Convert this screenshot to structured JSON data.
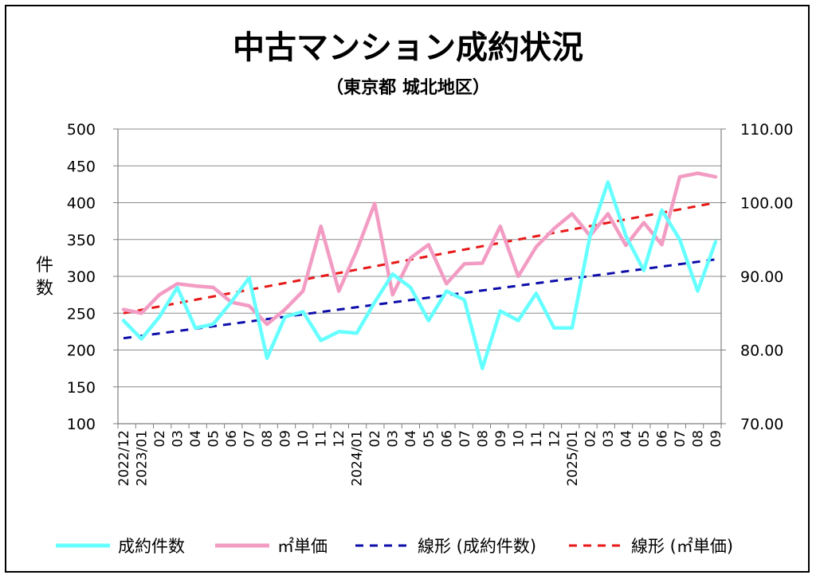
{
  "chart_data": {
    "type": "line",
    "title": "中古マンション成約状況",
    "subtitle": "（東京都 城北地区）",
    "ylabel": "件\n数",
    "ylim_left": [
      100,
      500
    ],
    "ylim_right": [
      70,
      110
    ],
    "left_ticks": [
      "100",
      "150",
      "200",
      "250",
      "300",
      "350",
      "400",
      "450",
      "500"
    ],
    "right_ticks": [
      "70.00",
      "80.00",
      "90.00",
      "100.00",
      "110.00"
    ],
    "categories": [
      "2022/12",
      "2023/01",
      "02",
      "03",
      "04",
      "05",
      "06",
      "07",
      "08",
      "09",
      "10",
      "11",
      "12",
      "2024/01",
      "02",
      "03",
      "04",
      "05",
      "06",
      "07",
      "08",
      "09",
      "10",
      "11",
      "12",
      "2025/01",
      "02",
      "03",
      "04",
      "05",
      "06",
      "07",
      "08",
      "09"
    ],
    "series": [
      {
        "name": "成約件数",
        "axis": "left",
        "color": "#66ffff",
        "style": "solid",
        "values": [
          240,
          215,
          245,
          285,
          230,
          235,
          265,
          298,
          189,
          245,
          252,
          213,
          225,
          223,
          265,
          303,
          285,
          240,
          280,
          268,
          175,
          253,
          240,
          277,
          230,
          230,
          355,
          428,
          355,
          308,
          390,
          350,
          280,
          347
        ]
      },
      {
        "name": "㎡単価",
        "axis": "right",
        "color": "#f39cc3",
        "style": "solid",
        "values": [
          85.5,
          85.0,
          87.5,
          89.0,
          88.7,
          88.5,
          86.5,
          86.0,
          83.5,
          85.5,
          88.0,
          96.8,
          88.0,
          93.5,
          99.9,
          87.5,
          92.5,
          94.3,
          89.0,
          91.7,
          91.8,
          96.8,
          90.0,
          94.0,
          96.5,
          98.5,
          95.5,
          98.5,
          94.2,
          97.3,
          94.3,
          103.5,
          104.0,
          103.5
        ]
      },
      {
        "name": "線形 (成約件数)",
        "axis": "left",
        "color": "#0d0daa",
        "style": "dashed",
        "trend": [
          216,
          323
        ]
      },
      {
        "name": "線形 (㎡単価)",
        "axis": "right",
        "color": "#e81818",
        "style": "dashed",
        "trend": [
          85.0,
          100.0
        ]
      }
    ],
    "legend": {
      "position": "bottom",
      "items": [
        "成約件数",
        "㎡単価",
        "線形 (成約件数)",
        "線形 (㎡単価)"
      ]
    }
  }
}
